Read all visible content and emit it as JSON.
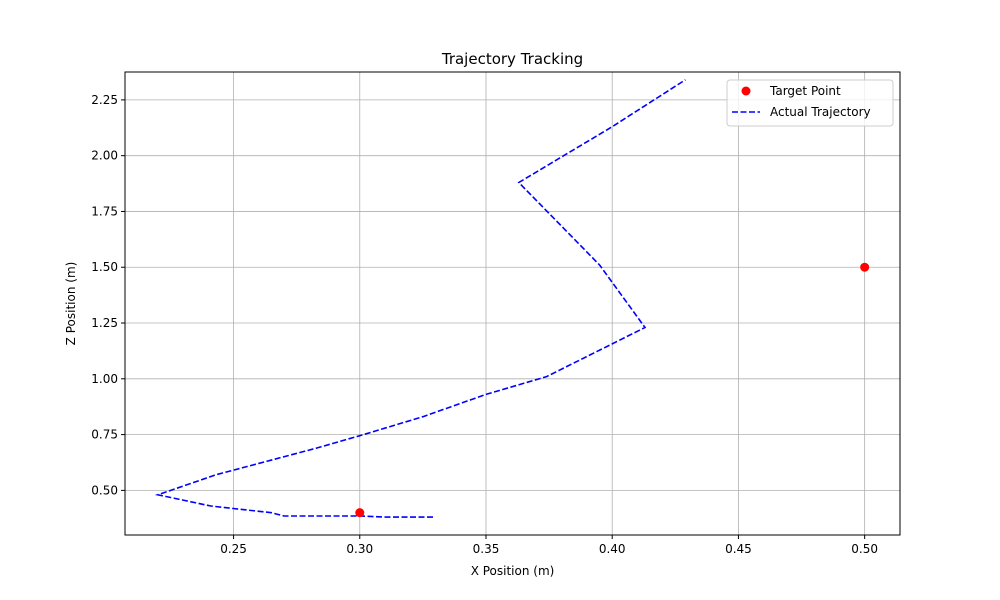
{
  "chart_data": {
    "type": "line",
    "title": "Trajectory Tracking",
    "xlabel": "X Position (m)",
    "ylabel": "Z Position (m)",
    "xlim": [
      0.207,
      0.514
    ],
    "ylim": [
      0.3,
      2.375
    ],
    "xticks": [
      0.25,
      0.3,
      0.35,
      0.4,
      0.45,
      0.5
    ],
    "xtick_labels": [
      "0.25",
      "0.30",
      "0.35",
      "0.40",
      "0.45",
      "0.50"
    ],
    "yticks": [
      0.5,
      0.75,
      1.0,
      1.25,
      1.5,
      1.75,
      2.0,
      2.25
    ],
    "ytick_labels": [
      "0.50",
      "0.75",
      "1.00",
      "1.25",
      "1.50",
      "1.75",
      "2.00",
      "2.25"
    ],
    "grid": true,
    "legend_position": "top-right",
    "series": [
      {
        "name": "Target Point",
        "kind": "scatter",
        "color": "#ff0000",
        "points": [
          {
            "x": 0.3,
            "y": 0.4
          },
          {
            "x": 0.5,
            "y": 1.5
          }
        ]
      },
      {
        "name": "Actual Trajectory",
        "kind": "line",
        "style": "dashed",
        "color": "#0000ff",
        "points": [
          {
            "x": 0.329,
            "y": 0.38
          },
          {
            "x": 0.31,
            "y": 0.38
          },
          {
            "x": 0.3,
            "y": 0.385
          },
          {
            "x": 0.285,
            "y": 0.385
          },
          {
            "x": 0.27,
            "y": 0.385
          },
          {
            "x": 0.265,
            "y": 0.4
          },
          {
            "x": 0.241,
            "y": 0.43
          },
          {
            "x": 0.22,
            "y": 0.48
          },
          {
            "x": 0.243,
            "y": 0.57
          },
          {
            "x": 0.283,
            "y": 0.69
          },
          {
            "x": 0.3,
            "y": 0.745
          },
          {
            "x": 0.325,
            "y": 0.83
          },
          {
            "x": 0.35,
            "y": 0.93
          },
          {
            "x": 0.374,
            "y": 1.01
          },
          {
            "x": 0.413,
            "y": 1.23
          },
          {
            "x": 0.395,
            "y": 1.51
          },
          {
            "x": 0.363,
            "y": 1.88
          },
          {
            "x": 0.4,
            "y": 2.13
          },
          {
            "x": 0.429,
            "y": 2.34
          }
        ]
      }
    ]
  }
}
